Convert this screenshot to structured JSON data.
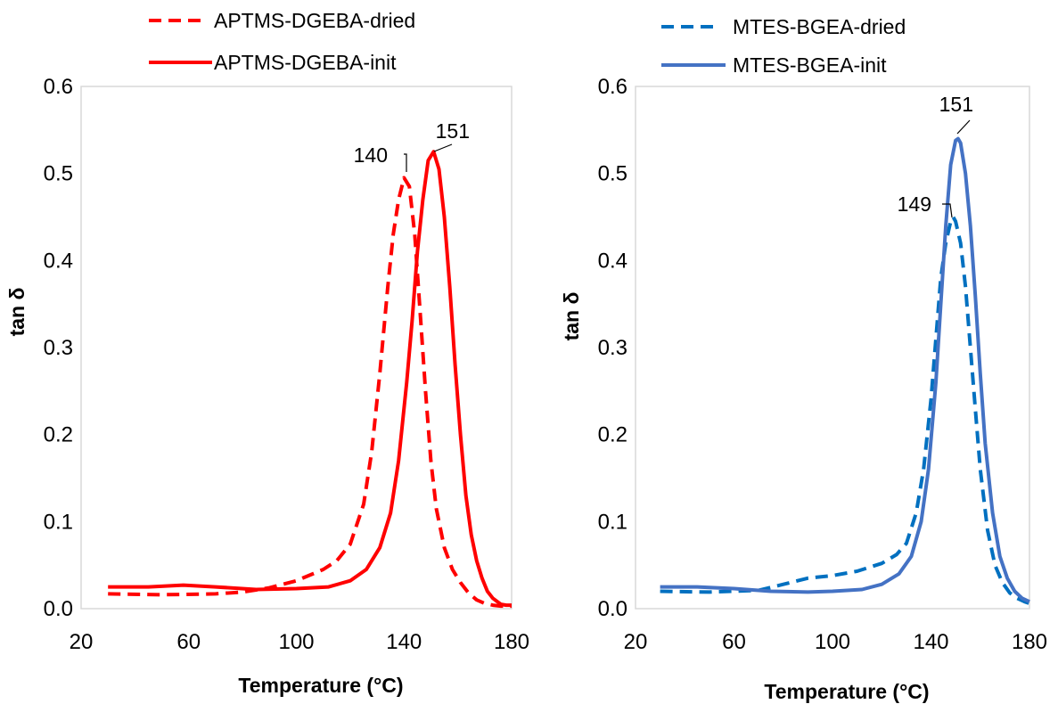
{
  "chart_data": [
    {
      "type": "line",
      "xlabel": "Temperature (°C)",
      "ylabel": "tan δ",
      "xlim": [
        20,
        180
      ],
      "ylim": [
        0,
        0.6
      ],
      "xticks": [
        "20",
        "60",
        "100",
        "140",
        "180"
      ],
      "yticks": [
        "0.0",
        "0.1",
        "0.2",
        "0.3",
        "0.4",
        "0.5",
        "0.6"
      ],
      "grid": false,
      "legend_position": "top",
      "series": [
        {
          "name": "APTMS-DGEBA-dried",
          "style": "dashed",
          "color": "#ff0000",
          "x": [
            30,
            50,
            70,
            80,
            90,
            100,
            110,
            115,
            120,
            125,
            128,
            131,
            134,
            136,
            138,
            140,
            142,
            144,
            146,
            148,
            150,
            152,
            155,
            158,
            161,
            164,
            167,
            170,
            173,
            176,
            180
          ],
          "y": [
            0.017,
            0.016,
            0.017,
            0.019,
            0.024,
            0.032,
            0.045,
            0.055,
            0.074,
            0.12,
            0.18,
            0.27,
            0.37,
            0.43,
            0.47,
            0.495,
            0.485,
            0.43,
            0.34,
            0.25,
            0.17,
            0.115,
            0.07,
            0.045,
            0.03,
            0.018,
            0.01,
            0.006,
            0.004,
            0.003,
            0.003
          ]
        },
        {
          "name": "APTMS-DGEBA-init",
          "style": "solid",
          "color": "#ff0000",
          "x": [
            30,
            45,
            58,
            70,
            85,
            100,
            112,
            120,
            126,
            131,
            135,
            138,
            141,
            143,
            145,
            147,
            149,
            151,
            153,
            155,
            157,
            159,
            161,
            163,
            165,
            167,
            169,
            171,
            173,
            176,
            178,
            180
          ],
          "y": [
            0.025,
            0.025,
            0.027,
            0.025,
            0.022,
            0.023,
            0.025,
            0.032,
            0.045,
            0.07,
            0.11,
            0.17,
            0.26,
            0.33,
            0.41,
            0.47,
            0.515,
            0.525,
            0.505,
            0.45,
            0.37,
            0.28,
            0.2,
            0.13,
            0.085,
            0.055,
            0.035,
            0.02,
            0.012,
            0.005,
            0.004,
            0.004
          ]
        }
      ],
      "annotations": [
        {
          "text": "140",
          "x": 140,
          "y": 0.495
        },
        {
          "text": "151",
          "x": 151,
          "y": 0.525
        }
      ]
    },
    {
      "type": "line",
      "xlabel": "Temperature (°C)",
      "ylabel": "tan δ",
      "xlim": [
        20,
        180
      ],
      "ylim": [
        0,
        0.6
      ],
      "xticks": [
        "20",
        "60",
        "100",
        "140",
        "180"
      ],
      "yticks": [
        "0.0",
        "0.1",
        "0.2",
        "0.3",
        "0.4",
        "0.5",
        "0.6"
      ],
      "grid": false,
      "legend_position": "top",
      "series": [
        {
          "name": "MTES-BGEA-dried",
          "style": "dashed",
          "color": "#0070c0",
          "x": [
            30,
            50,
            70,
            80,
            90,
            100,
            110,
            120,
            126,
            130,
            134,
            137,
            140,
            142,
            144,
            146,
            148,
            149,
            150,
            152,
            154,
            156,
            158,
            160,
            163,
            166,
            169,
            172,
            175,
            178,
            180
          ],
          "y": [
            0.02,
            0.019,
            0.021,
            0.028,
            0.035,
            0.038,
            0.043,
            0.052,
            0.062,
            0.075,
            0.11,
            0.16,
            0.24,
            0.31,
            0.38,
            0.42,
            0.445,
            0.45,
            0.445,
            0.42,
            0.37,
            0.3,
            0.23,
            0.16,
            0.09,
            0.05,
            0.03,
            0.018,
            0.012,
            0.008,
            0.006
          ]
        },
        {
          "name": "MTES-BGEA-init",
          "style": "solid",
          "color": "#4472c4",
          "x": [
            30,
            45,
            60,
            75,
            90,
            100,
            112,
            120,
            127,
            132,
            136,
            139,
            142,
            144,
            146,
            148,
            150,
            151,
            152,
            154,
            156,
            158,
            160,
            162,
            165,
            168,
            171,
            174,
            177,
            180
          ],
          "y": [
            0.025,
            0.025,
            0.023,
            0.02,
            0.019,
            0.02,
            0.022,
            0.028,
            0.04,
            0.06,
            0.1,
            0.16,
            0.26,
            0.35,
            0.44,
            0.51,
            0.538,
            0.54,
            0.535,
            0.5,
            0.44,
            0.36,
            0.27,
            0.19,
            0.11,
            0.06,
            0.035,
            0.02,
            0.012,
            0.008
          ]
        }
      ],
      "annotations": [
        {
          "text": "149",
          "x": 149,
          "y": 0.45
        },
        {
          "text": "151",
          "x": 151,
          "y": 0.54
        }
      ]
    }
  ]
}
